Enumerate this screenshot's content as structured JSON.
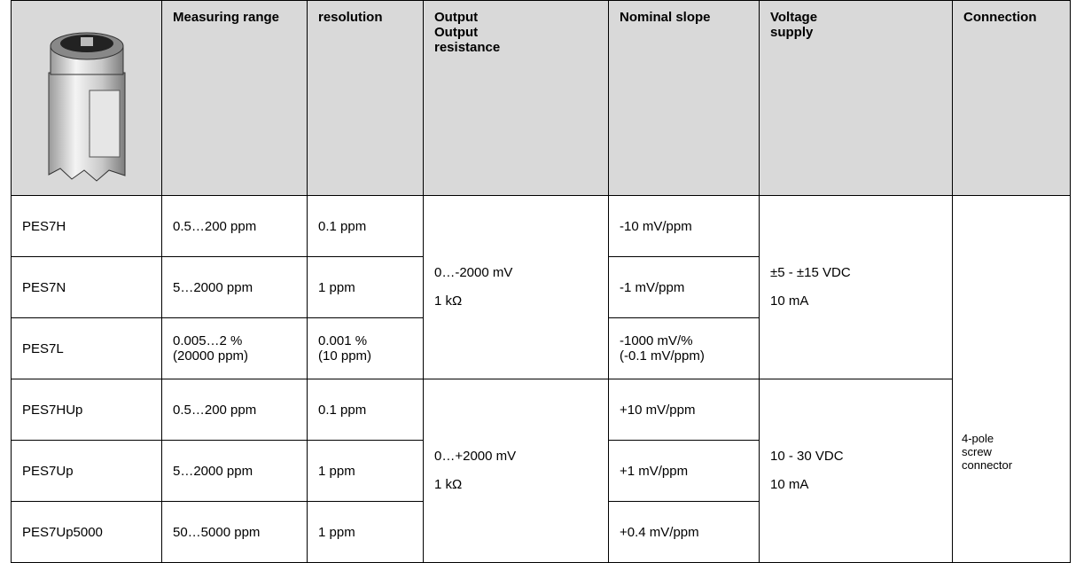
{
  "header": {
    "columns": [
      "Measuring range",
      "resolution",
      "Output\nOutput\nresistance",
      "Nominal slope",
      "Voltage\nsupply",
      "Connection"
    ]
  },
  "table": {
    "groups": [
      {
        "output": [
          "0…-2000 mV",
          "1 kΩ"
        ],
        "supply": [
          "±5 - ±15 VDC",
          "10 mA"
        ],
        "rows": [
          {
            "model": "PES7H",
            "range": "0.5…200 ppm",
            "resolution": "0.1 ppm",
            "slope": "-10 mV/ppm"
          },
          {
            "model": "PES7N",
            "range": "5…2000 ppm",
            "resolution": "1 ppm",
            "slope": "-1 mV/ppm"
          },
          {
            "model": "PES7L",
            "range": "0.005…2 %\n(20000 ppm)",
            "resolution": "0.001 %\n(10 ppm)",
            "slope": "-1000 mV/%\n(-0.1 mV/ppm)"
          }
        ]
      },
      {
        "output": [
          "0…+2000 mV",
          "1 kΩ"
        ],
        "supply": [
          "10 - 30 VDC",
          "10 mA"
        ],
        "rows": [
          {
            "model": "PES7HUp",
            "range": "0.5…200 ppm",
            "resolution": "0.1 ppm",
            "slope": "+10 mV/ppm"
          },
          {
            "model": "PES7Up",
            "range": "5…2000 ppm",
            "resolution": "1 ppm",
            "slope": "+1 mV/ppm"
          },
          {
            "model": "PES7Up5000",
            "range": "50…5000 ppm",
            "resolution": "1 ppm",
            "slope": "+0.4 mV/ppm"
          }
        ]
      }
    ],
    "connection": "4-pole\nscrew\nconnector"
  }
}
